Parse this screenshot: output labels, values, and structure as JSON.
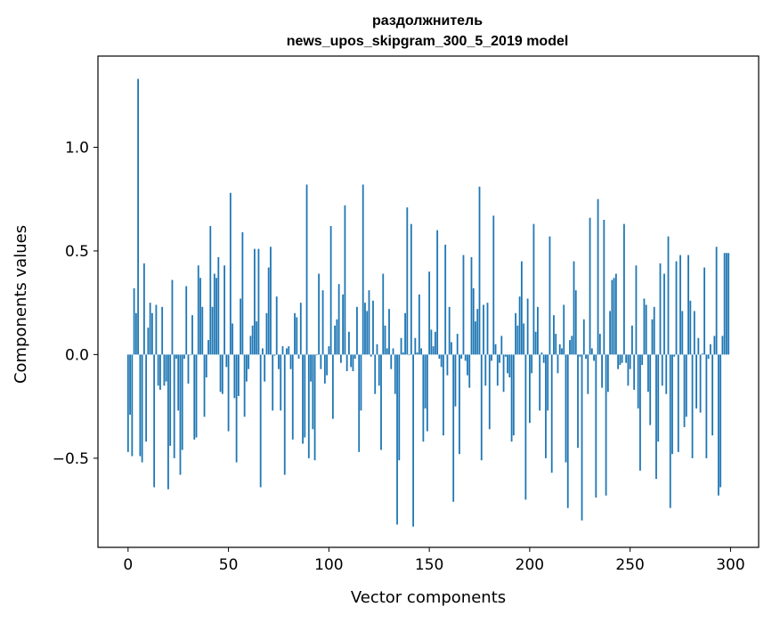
{
  "chart_data": {
    "type": "bar",
    "title": [
      "раздолжнитель",
      "news_upos_skipgram_300_5_2019 model"
    ],
    "xlabel": "Vector components",
    "ylabel": "Components values",
    "xlim": [
      -15,
      314
    ],
    "ylim": [
      -0.93,
      1.44
    ],
    "xticks": [
      0,
      50,
      100,
      150,
      200,
      250,
      300
    ],
    "xtick_labels": [
      "0",
      "50",
      "100",
      "150",
      "200",
      "250",
      "300"
    ],
    "yticks": [
      -0.5,
      0.0,
      0.5,
      1.0
    ],
    "ytick_labels": [
      "−0.5",
      "0.0",
      "0.5",
      "1.0"
    ],
    "grid": false,
    "bar_color": "#1f77b4",
    "values": [
      -0.47,
      -0.29,
      -0.49,
      0.32,
      0.2,
      1.33,
      -0.49,
      -0.52,
      0.44,
      -0.42,
      0.13,
      0.25,
      0.2,
      -0.64,
      0.24,
      -0.15,
      -0.17,
      0.23,
      -0.15,
      -0.13,
      -0.65,
      -0.44,
      0.36,
      -0.5,
      -0.02,
      -0.27,
      -0.58,
      -0.46,
      -0.02,
      0.33,
      -0.14,
      -0.003,
      0.19,
      -0.41,
      -0.4,
      0.43,
      0.37,
      0.23,
      -0.3,
      -0.11,
      0.07,
      0.62,
      0.23,
      0.39,
      0.37,
      0.47,
      -0.18,
      -0.19,
      0.43,
      -0.06,
      -0.37,
      0.78,
      0.15,
      -0.21,
      -0.52,
      -0.2,
      0.27,
      0.59,
      -0.3,
      -0.13,
      -0.07,
      0.09,
      0.14,
      0.51,
      0.16,
      0.51,
      -0.64,
      0.03,
      -0.13,
      0.2,
      0.42,
      0.52,
      -0.27,
      -0.005,
      0.28,
      -0.07,
      -0.27,
      0.04,
      -0.58,
      0.03,
      0.04,
      -0.07,
      -0.41,
      0.2,
      0.18,
      -0.02,
      0.25,
      -0.43,
      -0.4,
      0.82,
      -0.5,
      -0.13,
      -0.36,
      -0.51,
      -0.003,
      0.39,
      -0.07,
      0.31,
      -0.14,
      -0.1,
      0.04,
      0.62,
      -0.31,
      0.14,
      0.17,
      0.34,
      -0.04,
      0.29,
      0.72,
      -0.08,
      0.11,
      -0.06,
      -0.08,
      -0.02,
      0.23,
      -0.47,
      -0.27,
      0.82,
      0.25,
      0.21,
      0.31,
      -0.01,
      0.26,
      -0.19,
      0.05,
      -0.15,
      -0.46,
      0.39,
      0.14,
      0.03,
      0.22,
      -0.07,
      0.03,
      -0.19,
      -0.82,
      -0.51,
      0.08,
      0.01,
      0.2,
      0.71,
      -0.003,
      0.63,
      -0.83,
      0.08,
      0.01,
      0.29,
      0.03,
      -0.42,
      -0.26,
      -0.37,
      0.4,
      0.12,
      0.04,
      0.11,
      0.6,
      -0.02,
      -0.06,
      -0.39,
      0.53,
      -0.1,
      0.23,
      0.06,
      -0.71,
      -0.25,
      0.1,
      -0.48,
      -0.02,
      0.48,
      -0.03,
      -0.1,
      -0.16,
      0.47,
      0.32,
      0.16,
      0.22,
      0.81,
      -0.51,
      0.24,
      -0.15,
      0.25,
      -0.36,
      -0.03,
      0.67,
      0.05,
      -0.15,
      -0.04,
      0.09,
      -0.18,
      -0.01,
      -0.09,
      -0.11,
      -0.42,
      -0.39,
      0.2,
      0.14,
      0.28,
      0.45,
      0.15,
      -0.7,
      0.27,
      -0.33,
      -0.09,
      0.63,
      0.11,
      0.23,
      -0.27,
      0.01,
      -0.04,
      -0.5,
      -0.27,
      0.57,
      -0.57,
      0.19,
      0.1,
      -0.09,
      0.05,
      0.03,
      0.24,
      -0.52,
      -0.74,
      0.07,
      0.09,
      0.45,
      0.31,
      -0.45,
      -0.01,
      -0.8,
      0.17,
      -0.02,
      -0.19,
      0.66,
      0.03,
      -0.03,
      -0.69,
      0.75,
      0.1,
      -0.16,
      0.65,
      -0.68,
      -0.18,
      0.21,
      0.36,
      0.37,
      0.39,
      -0.07,
      -0.05,
      -0.04,
      0.63,
      -0.04,
      -0.15,
      -0.07,
      0.14,
      -0.17,
      0.43,
      -0.26,
      -0.56,
      -0.05,
      0.27,
      0.24,
      -0.18,
      -0.34,
      0.17,
      0.23,
      -0.6,
      -0.42,
      0.44,
      -0.15,
      0.39,
      -0.19,
      0.57,
      -0.74,
      -0.48,
      -0.01,
      0.45,
      -0.47,
      0.48,
      0.21,
      -0.35,
      -0.3,
      0.48,
      0.26,
      -0.5,
      0.21,
      -0.26,
      0.08,
      -0.28,
      0.005,
      0.42,
      -0.5,
      -0.02,
      0.05,
      -0.39,
      0.09,
      0.52,
      -0.68,
      -0.64,
      0.09,
      0.49,
      0.49,
      0.49
    ]
  }
}
